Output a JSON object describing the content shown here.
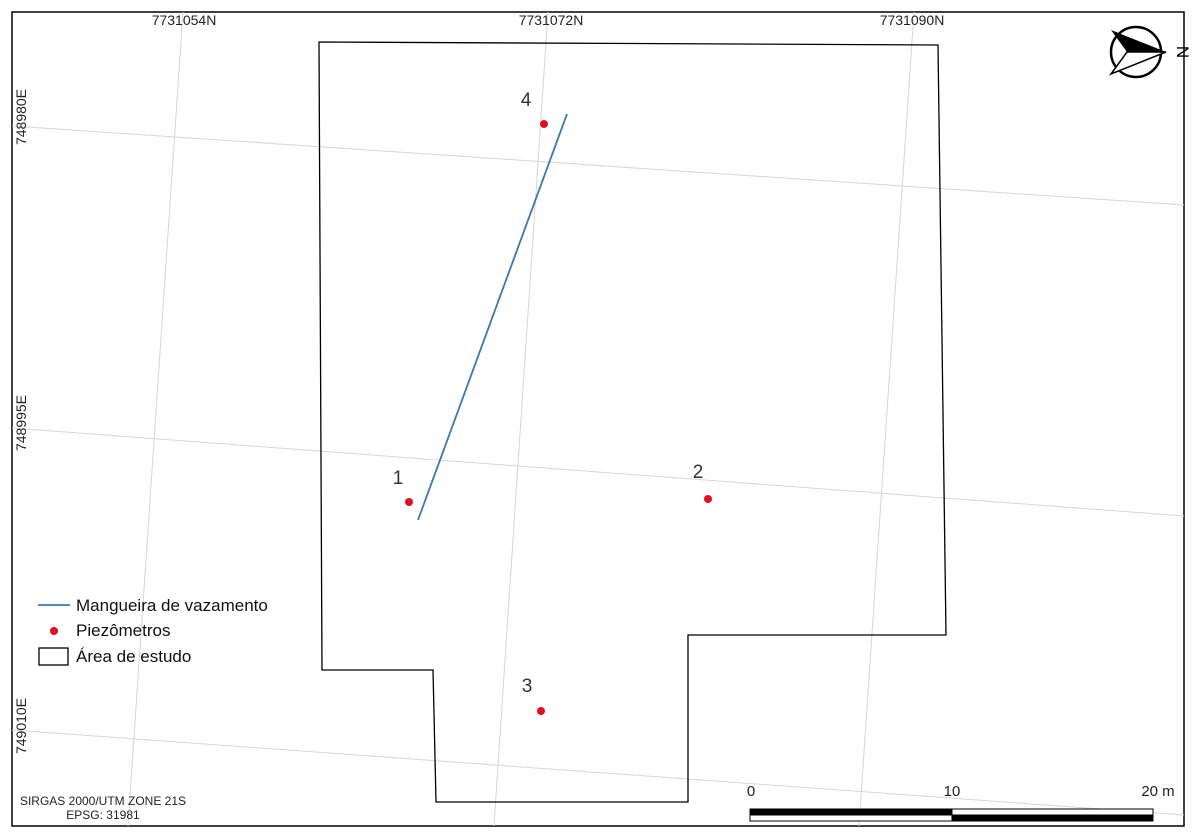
{
  "grid_labels": {
    "top": [
      "7731054N",
      "7731072N",
      "7731090N"
    ],
    "left": [
      "748980E",
      "748995E",
      "749010E"
    ]
  },
  "north_arrow": {
    "label": "N",
    "icon": "north-arrow-icon"
  },
  "piezometers": [
    {
      "id": "1"
    },
    {
      "id": "2"
    },
    {
      "id": "3"
    },
    {
      "id": "4"
    }
  ],
  "legend": {
    "items": [
      {
        "label": "Mangueira de vazamento",
        "symbol": "line"
      },
      {
        "label": "Piezômetros",
        "symbol": "point"
      },
      {
        "label": "Área de estudo",
        "symbol": "polygon"
      }
    ]
  },
  "scale_bar": {
    "labels": [
      "0",
      "10",
      "20 m"
    ]
  },
  "crs": {
    "line1": "SIRGAS 2000/UTM ZONE 21S",
    "line2": "EPSG: 31981"
  },
  "colors": {
    "frame": "#000000",
    "grid": "#d8d8d8",
    "hose": "#3a78b0",
    "piezometer": "#e0101a",
    "text": "#222222"
  }
}
